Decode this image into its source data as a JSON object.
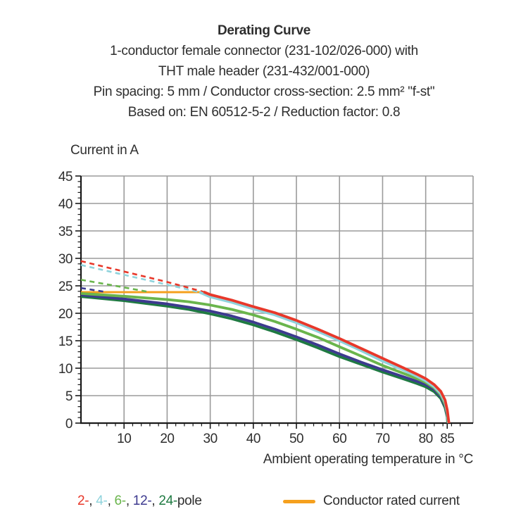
{
  "header": {
    "title": "Derating Curve",
    "subtitle_lines": [
      "1-conductor female connector (231-102/026-000) with",
      "THT male header (231-432/001-000)",
      "Pin spacing: 5 mm / Conductor cross-section: 2.5 mm² \"f-st\"",
      "Based on: EN 60512-5-2 / Reduction factor: 0.8"
    ]
  },
  "legend": {
    "pole_items": [
      {
        "label": "2-",
        "color": "#e8382a"
      },
      {
        "label": "4-",
        "color": "#8fd3dc"
      },
      {
        "label": "6-",
        "color": "#6ab54c"
      },
      {
        "label": "12-",
        "color": "#3d3a8f"
      },
      {
        "label": "24-",
        "color": "#1f7a42"
      }
    ],
    "separator": ", ",
    "pole_suffix": "pole",
    "rated": {
      "label": "Conductor rated current",
      "color": "#f5a01e"
    }
  },
  "chart_data": {
    "type": "line",
    "title": "Derating Curve",
    "xlabel": "Ambient operating temperature in °C",
    "ylabel": "Current in A",
    "xlim": [
      0,
      91
    ],
    "ylim": [
      0,
      45
    ],
    "x_major_ticks": [
      10,
      20,
      30,
      40,
      50,
      60,
      70,
      80,
      85
    ],
    "x_gridlines": [
      10,
      20,
      30,
      40,
      50,
      60,
      70,
      80
    ],
    "x_minor_step": 2,
    "y_major_ticks": [
      0,
      5,
      10,
      15,
      20,
      25,
      30,
      35,
      40,
      45
    ],
    "y_gridlines": [
      5,
      10,
      15,
      20,
      25,
      30,
      35,
      40,
      45
    ],
    "y_minor_step": 1,
    "grid_on": true,
    "grid_color": "#9b9b9b",
    "axis_color": "#1a1a1a",
    "legend_position": "bottom",
    "series": [
      {
        "name": "conductor-rated-current",
        "label": "Conductor rated current",
        "color": "#f5a01e",
        "dashed": false,
        "width": 3,
        "points": [
          [
            0,
            23.85
          ],
          [
            28.6,
            23.85
          ]
        ]
      },
      {
        "name": "12-pole-above-rating",
        "label": "12-pole (above conductor rating)",
        "color": "#3d3a8f",
        "dashed": true,
        "width": 2.6,
        "points": [
          [
            0,
            24.6
          ],
          [
            6,
            23.85
          ]
        ]
      },
      {
        "name": "6-pole-above-rating",
        "label": "6-pole (above conductor rating)",
        "color": "#6ab54c",
        "dashed": true,
        "width": 2.6,
        "points": [
          [
            0,
            26.1
          ],
          [
            8,
            25.0
          ],
          [
            16,
            23.85
          ]
        ]
      },
      {
        "name": "4-pole-above-rating",
        "label": "4-pole (above conductor rating)",
        "color": "#8fd3dc",
        "dashed": true,
        "width": 2.6,
        "points": [
          [
            0,
            28.8
          ],
          [
            10,
            27.0
          ],
          [
            20,
            25.2
          ],
          [
            27.5,
            23.85
          ]
        ]
      },
      {
        "name": "2-pole-above-rating",
        "label": "2-pole (above conductor rating)",
        "color": "#e8382a",
        "dashed": true,
        "width": 2.6,
        "points": [
          [
            0,
            29.5
          ],
          [
            10,
            27.6
          ],
          [
            20,
            25.7
          ],
          [
            28.5,
            23.9
          ]
        ]
      },
      {
        "name": "24-pole",
        "label": "24-pole",
        "color": "#1f7a42",
        "dashed": false,
        "width": 3.8,
        "points": [
          [
            0,
            23.05
          ],
          [
            10,
            22.3
          ],
          [
            20,
            21.3
          ],
          [
            25,
            20.7
          ],
          [
            30,
            19.9
          ],
          [
            35,
            19.0
          ],
          [
            40,
            17.9
          ],
          [
            45,
            16.6
          ],
          [
            50,
            15.2
          ],
          [
            55,
            13.7
          ],
          [
            60,
            12.1
          ],
          [
            65,
            10.7
          ],
          [
            70,
            9.3
          ],
          [
            75,
            8.0
          ],
          [
            78,
            7.2
          ],
          [
            80,
            6.6
          ],
          [
            82,
            5.7
          ],
          [
            83.5,
            4.5
          ],
          [
            84.5,
            2.8
          ],
          [
            85,
            1.1
          ],
          [
            85.1,
            0
          ]
        ]
      },
      {
        "name": "12-pole",
        "label": "12-pole",
        "color": "#3d3a8f",
        "dashed": false,
        "width": 3.8,
        "points": [
          [
            0,
            23.35
          ],
          [
            10,
            22.6
          ],
          [
            20,
            21.7
          ],
          [
            25,
            21.1
          ],
          [
            30,
            20.4
          ],
          [
            35,
            19.5
          ],
          [
            40,
            18.4
          ],
          [
            45,
            17.1
          ],
          [
            50,
            15.7
          ],
          [
            55,
            14.2
          ],
          [
            60,
            12.6
          ],
          [
            65,
            11.1
          ],
          [
            70,
            9.7
          ],
          [
            75,
            8.4
          ],
          [
            78,
            7.6
          ],
          [
            80,
            7.0
          ],
          [
            82,
            6.1
          ],
          [
            83.5,
            4.8
          ],
          [
            84.5,
            3.1
          ],
          [
            85,
            1.4
          ],
          [
            85.15,
            0
          ]
        ]
      },
      {
        "name": "6-pole",
        "label": "6-pole",
        "color": "#6ab54c",
        "dashed": false,
        "width": 3.8,
        "points": [
          [
            0,
            23.6
          ],
          [
            10,
            23.1
          ],
          [
            20,
            22.5
          ],
          [
            25,
            22.1
          ],
          [
            30,
            21.5
          ],
          [
            35,
            20.7
          ],
          [
            40,
            19.7
          ],
          [
            45,
            18.5
          ],
          [
            50,
            17.1
          ],
          [
            55,
            15.6
          ],
          [
            60,
            13.9
          ],
          [
            65,
            12.2
          ],
          [
            70,
            10.5
          ],
          [
            75,
            9.0
          ],
          [
            78,
            8.1
          ],
          [
            80,
            7.4
          ],
          [
            82,
            6.4
          ],
          [
            83.5,
            5.1
          ],
          [
            84.5,
            3.4
          ],
          [
            85,
            1.7
          ],
          [
            85.2,
            0
          ]
        ]
      },
      {
        "name": "4-pole",
        "label": "4-pole",
        "color": "#8fd3dc",
        "dashed": false,
        "width": 3.8,
        "points": [
          [
            27.5,
            23.85
          ],
          [
            30,
            23.0
          ],
          [
            35,
            22.0
          ],
          [
            40,
            20.8
          ],
          [
            45,
            19.7
          ],
          [
            50,
            18.3
          ],
          [
            55,
            16.7
          ],
          [
            60,
            15.0
          ],
          [
            65,
            13.2
          ],
          [
            70,
            11.3
          ],
          [
            75,
            9.6
          ],
          [
            78,
            8.5
          ],
          [
            80,
            7.7
          ],
          [
            82,
            6.6
          ],
          [
            83.5,
            5.4
          ],
          [
            84.5,
            3.8
          ],
          [
            85,
            2.0
          ],
          [
            85.3,
            0
          ]
        ]
      },
      {
        "name": "2-pole",
        "label": "2-pole",
        "color": "#e8382a",
        "dashed": false,
        "width": 3.8,
        "points": [
          [
            28.5,
            23.9
          ],
          [
            30,
            23.4
          ],
          [
            35,
            22.4
          ],
          [
            40,
            21.2
          ],
          [
            45,
            20.1
          ],
          [
            50,
            18.7
          ],
          [
            55,
            17.1
          ],
          [
            60,
            15.4
          ],
          [
            65,
            13.6
          ],
          [
            70,
            11.8
          ],
          [
            75,
            10.0
          ],
          [
            78,
            8.9
          ],
          [
            80,
            8.1
          ],
          [
            82,
            7.0
          ],
          [
            83.5,
            5.8
          ],
          [
            84.5,
            4.2
          ],
          [
            85,
            2.4
          ],
          [
            85.4,
            0
          ]
        ]
      }
    ]
  }
}
